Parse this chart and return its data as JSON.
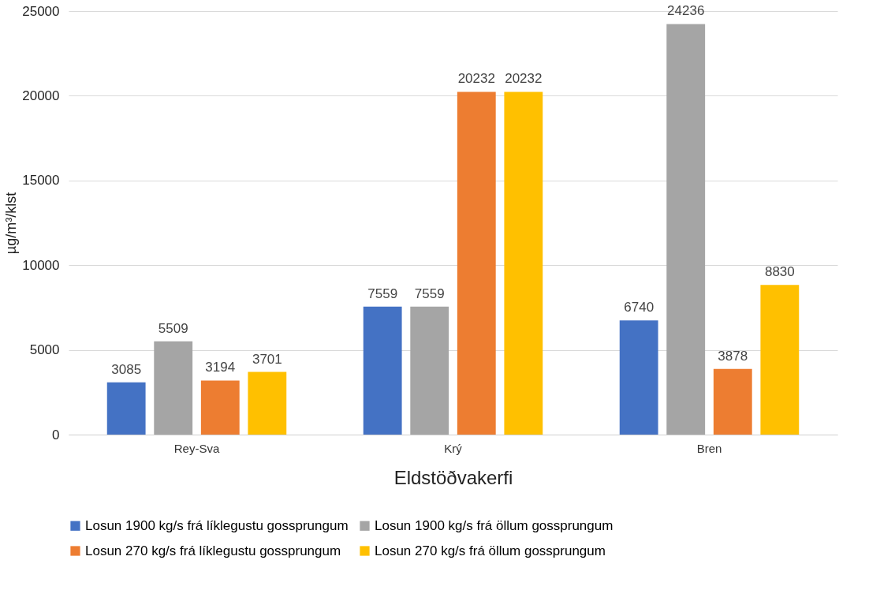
{
  "chart_data": {
    "type": "bar",
    "xlabel": "Eldstöðvakerfi",
    "ylabel": "µg/m³/klst",
    "categories": [
      "Rey-Sva",
      "Krý",
      "Bren"
    ],
    "series": [
      {
        "name": "Losun 1900 kg/s frá líklegustu gossprungum",
        "color": "#4472c4",
        "values": [
          3085,
          7559,
          6740
        ]
      },
      {
        "name": "Losun 1900 kg/s frá öllum gossprungum",
        "color": "#a5a5a5",
        "values": [
          5509,
          7559,
          24236
        ]
      },
      {
        "name": "Losun 270 kg/s frá líklegustu gossprungum",
        "color": "#ed7d31",
        "values": [
          3194,
          20232,
          3878
        ]
      },
      {
        "name": "Losun 270 kg/s frá öllum gossprungum",
        "color": "#ffc000",
        "values": [
          3701,
          20232,
          8830
        ]
      }
    ],
    "ylim": [
      0,
      25000
    ],
    "yticks": [
      0,
      5000,
      10000,
      15000,
      20000,
      25000
    ],
    "grid": "y",
    "legend": "bottom",
    "data_labels": true
  }
}
